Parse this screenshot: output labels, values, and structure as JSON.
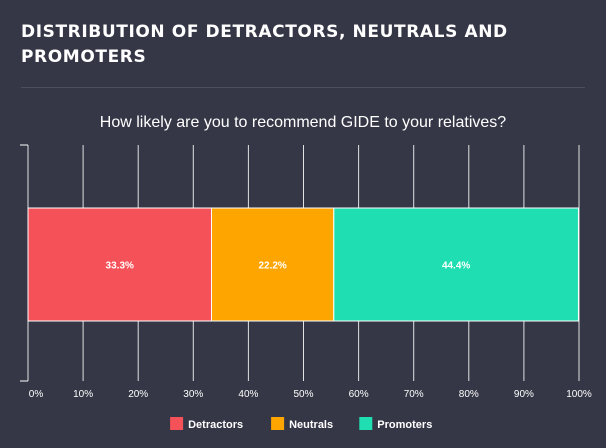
{
  "panel": {
    "title": "DISTRIBUTION OF DETRACTORS, NEUTRALS AND PROMOTERS"
  },
  "chart_data": {
    "type": "bar",
    "orientation": "horizontal",
    "stacked": true,
    "title": "How likely are you to recommend GIDE to your relatives?",
    "xlim": [
      0,
      100
    ],
    "x_ticks": [
      "0%",
      "10%",
      "20%",
      "30%",
      "40%",
      "50%",
      "60%",
      "70%",
      "80%",
      "90%",
      "100%"
    ],
    "grid": true,
    "legend_position": "bottom-center",
    "series": [
      {
        "name": "Detractors",
        "value": 33.3,
        "label": "33.3%",
        "color": "#f55159"
      },
      {
        "name": "Neutrals",
        "value": 22.2,
        "label": "22.2%",
        "color": "#ffa500"
      },
      {
        "name": "Promoters",
        "value": 44.4,
        "label": "44.4%",
        "color": "#1fdeb1"
      }
    ]
  }
}
